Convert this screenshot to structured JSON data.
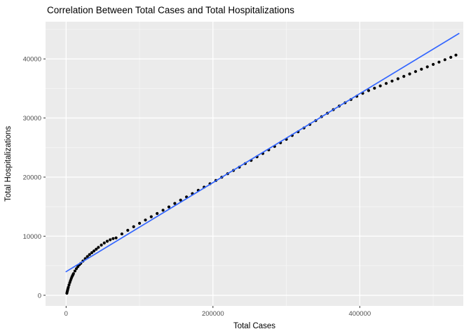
{
  "chart_data": {
    "type": "scatter",
    "title": "Correlation Between Total Cases and Total Hospitalizations",
    "xlabel": "Total Cases",
    "ylabel": "Total Hospitalizations",
    "xlim": [
      -28000,
      541000
    ],
    "ylim": [
      -1800,
      46300
    ],
    "grid": true,
    "legend_position": "none",
    "x_ticks": {
      "values": [
        0,
        200000,
        400000
      ],
      "labels": [
        "0",
        "200000",
        "400000"
      ],
      "minor": [
        100000,
        300000,
        500000
      ]
    },
    "y_ticks": {
      "values": [
        0,
        10000,
        20000,
        30000,
        40000
      ],
      "labels": [
        "0",
        "10000",
        "20000",
        "30000",
        "40000"
      ],
      "minor": [
        5000,
        15000,
        25000,
        35000,
        45000
      ]
    },
    "colors": {
      "panel": "#EBEBEB",
      "grid_major": "#FFFFFF",
      "grid_minor": "#F6F6F6",
      "point": "#000000",
      "line": "#3366FF",
      "tick_text": "#4D4D4D",
      "tick_mark": "#333333"
    },
    "regression_line": {
      "x1": 0,
      "y1": 4000,
      "x2": 535000,
      "y2": 44300
    },
    "points": [
      [
        1000,
        350
      ],
      [
        1500,
        600
      ],
      [
        2000,
        850
      ],
      [
        2500,
        1100
      ],
      [
        3000,
        1350
      ],
      [
        4000,
        1750
      ],
      [
        5000,
        2150
      ],
      [
        6000,
        2500
      ],
      [
        7000,
        2850
      ],
      [
        8000,
        3150
      ],
      [
        9000,
        3400
      ],
      [
        10000,
        3650
      ],
      [
        12000,
        4100
      ],
      [
        14000,
        4500
      ],
      [
        16000,
        4850
      ],
      [
        18000,
        5150
      ],
      [
        20000,
        5400
      ],
      [
        23000,
        5800
      ],
      [
        26000,
        6200
      ],
      [
        29000,
        6550
      ],
      [
        32000,
        6900
      ],
      [
        35000,
        7200
      ],
      [
        38000,
        7500
      ],
      [
        41000,
        7800
      ],
      [
        44000,
        8100
      ],
      [
        48000,
        8500
      ],
      [
        52000,
        8850
      ],
      [
        56000,
        9150
      ],
      [
        60000,
        9400
      ],
      [
        64000,
        9600
      ],
      [
        68000,
        9720
      ],
      [
        76000,
        10380
      ],
      [
        84000,
        11000
      ],
      [
        92000,
        11600
      ],
      [
        100000,
        12180
      ],
      [
        108000,
        12740
      ],
      [
        116000,
        13290
      ],
      [
        124000,
        13840
      ],
      [
        132000,
        14400
      ],
      [
        140000,
        14950
      ],
      [
        148000,
        15550
      ],
      [
        156000,
        16100
      ],
      [
        164000,
        16650
      ],
      [
        172000,
        17200
      ],
      [
        180000,
        17760
      ],
      [
        188000,
        18310
      ],
      [
        196000,
        18870
      ],
      [
        204000,
        19420
      ],
      [
        212000,
        19970
      ],
      [
        220000,
        20570
      ],
      [
        228000,
        21130
      ],
      [
        236000,
        21680
      ],
      [
        244000,
        22280
      ],
      [
        252000,
        22830
      ],
      [
        260000,
        23440
      ],
      [
        268000,
        23990
      ],
      [
        276000,
        24590
      ],
      [
        284000,
        25190
      ],
      [
        292000,
        25800
      ],
      [
        300000,
        26400
      ],
      [
        308000,
        27050
      ],
      [
        316000,
        27660
      ],
      [
        324000,
        28310
      ],
      [
        332000,
        28910
      ],
      [
        340000,
        29560
      ],
      [
        348000,
        30220
      ],
      [
        356000,
        30820
      ],
      [
        364000,
        31420
      ],
      [
        372000,
        32020
      ],
      [
        380000,
        32580
      ],
      [
        388000,
        33130
      ],
      [
        396000,
        33680
      ],
      [
        404000,
        34180
      ],
      [
        412000,
        34640
      ],
      [
        420000,
        35040
      ],
      [
        428000,
        35440
      ],
      [
        436000,
        35850
      ],
      [
        444000,
        36250
      ],
      [
        452000,
        36650
      ],
      [
        460000,
        37050
      ],
      [
        468000,
        37460
      ],
      [
        476000,
        37860
      ],
      [
        484000,
        38260
      ],
      [
        492000,
        38660
      ],
      [
        500000,
        39070
      ],
      [
        508000,
        39470
      ],
      [
        516000,
        39870
      ],
      [
        524000,
        40270
      ],
      [
        531000,
        40650
      ]
    ]
  }
}
